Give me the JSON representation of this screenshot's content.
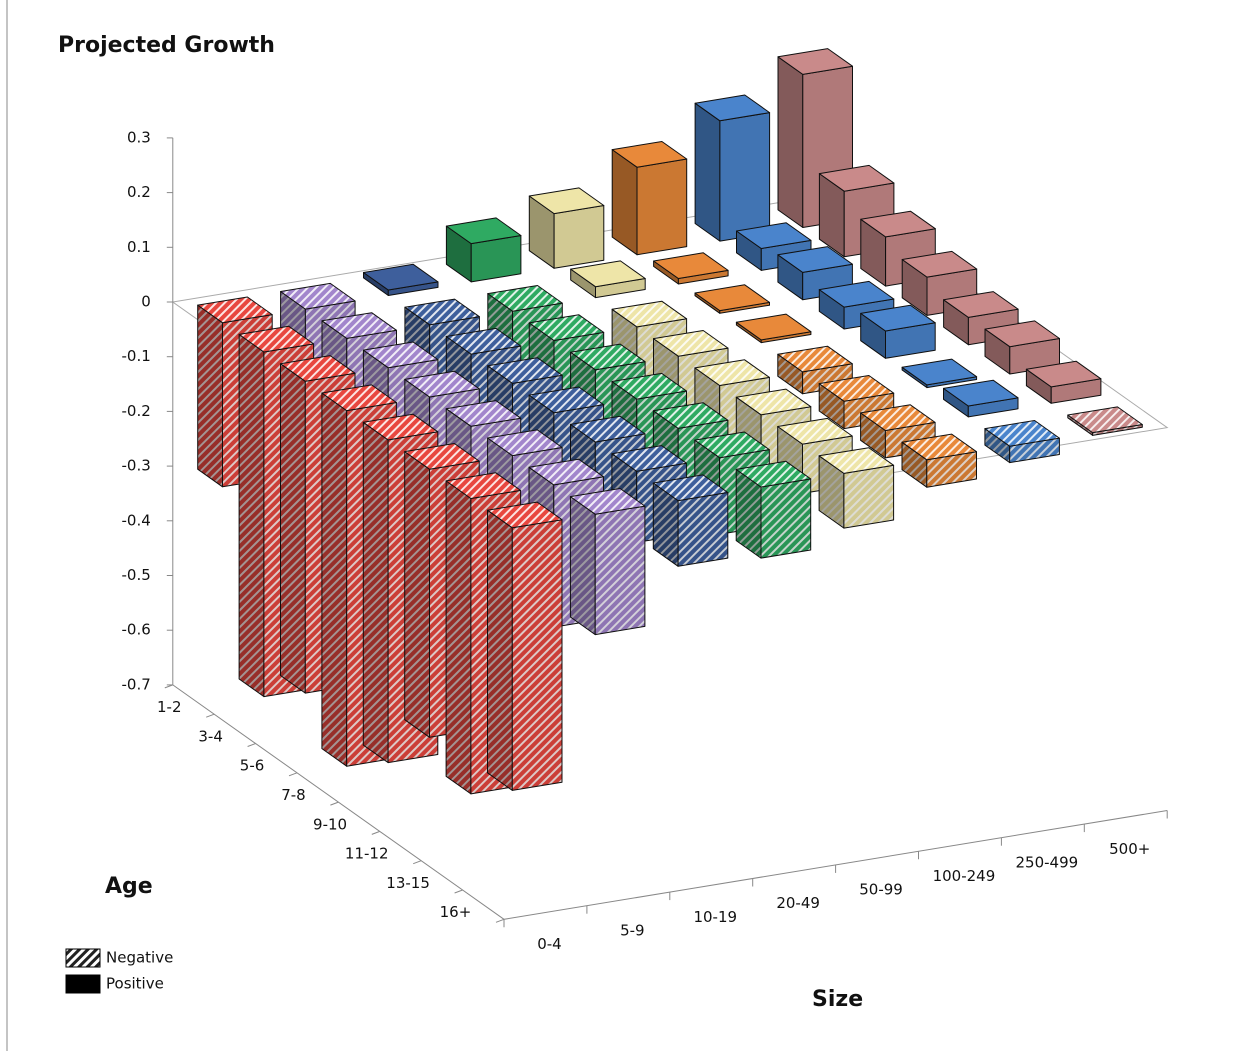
{
  "chart_data": {
    "type": "bar3d",
    "title": "Projected Growth",
    "x_label": "Size",
    "depth_label": "Age",
    "categories": [
      "0-4",
      "5-9",
      "10-19",
      "20-49",
      "50-99",
      "100-249",
      "250-499",
      "500+"
    ],
    "depth_categories": [
      "1-2",
      "3-4",
      "5-6",
      "7-8",
      "9-10",
      "11-12",
      "13-15",
      "16+"
    ],
    "series": [
      {
        "color": "#e8473f",
        "values": [
          -0.3,
          -0.63,
          -0.57,
          -0.65,
          -0.59,
          -0.49,
          -0.54,
          -0.48
        ]
      },
      {
        "color": "#a286cc",
        "values": [
          -0.1,
          -0.14,
          -0.16,
          -0.19,
          -0.22,
          -0.24,
          -0.26,
          -0.22
        ]
      },
      {
        "color": "#3e5f9c",
        "values": [
          0.01,
          -0.13,
          -0.14,
          -0.15,
          -0.15,
          -0.14,
          -0.13,
          -0.12
        ]
      },
      {
        "color": "#2faa62",
        "values": [
          0.07,
          -0.11,
          -0.12,
          -0.13,
          -0.13,
          -0.14,
          -0.14,
          -0.13
        ]
      },
      {
        "color": "#eee5a8",
        "values": [
          0.1,
          0.02,
          -0.1,
          -0.1,
          -0.11,
          -0.1,
          -0.09,
          -0.1
        ]
      },
      {
        "color": "#e8893a",
        "values": [
          0.16,
          0.01,
          0.005,
          0.005,
          -0.04,
          -0.05,
          -0.05,
          -0.05
        ]
      },
      {
        "color": "#4a84cc",
        "values": [
          0.22,
          0.04,
          0.05,
          0.04,
          0.05,
          0.005,
          0.02,
          -0.03
        ]
      },
      {
        "color": "#c98a8a",
        "values": [
          0.28,
          0.12,
          0.09,
          0.07,
          0.05,
          0.05,
          0.03,
          -0.005
        ]
      }
    ],
    "zlim": [
      -0.7,
      0.3
    ],
    "zticks": [
      -0.7,
      -0.6,
      -0.5,
      -0.4,
      -0.3,
      -0.2,
      -0.1,
      0,
      0.1,
      0.2,
      0.3
    ],
    "legend": [
      {
        "label": "Negative",
        "pattern": "hatch"
      },
      {
        "label": "Positive",
        "pattern": "solid"
      }
    ]
  }
}
